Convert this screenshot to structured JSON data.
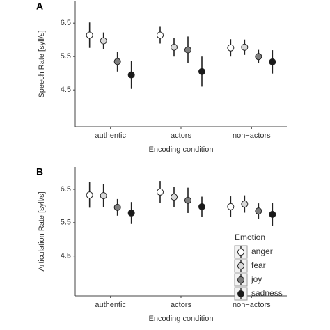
{
  "chart_data": [
    {
      "type": "errorbar",
      "panel_label": "A",
      "ylabel": "Speech Rate [syll/s]",
      "xlabel": "Encoding condition",
      "categories": [
        "authentic",
        "actors",
        "non−actors"
      ],
      "ylim": [
        3.4,
        7.15
      ],
      "yticks": [
        4.5,
        5.5,
        6.5
      ],
      "series": [
        {
          "name": "anger",
          "color": "#ffffff",
          "values": [
            6.14,
            6.14,
            5.76
          ],
          "errors": [
            0.38,
            0.25,
            0.26
          ]
        },
        {
          "name": "fear",
          "color": "#d9d9d9",
          "values": [
            5.97,
            5.78,
            5.78
          ],
          "errors": [
            0.25,
            0.28,
            0.23
          ]
        },
        {
          "name": "joy",
          "color": "#7f7f7f",
          "values": [
            5.35,
            5.7,
            5.5
          ],
          "errors": [
            0.3,
            0.4,
            0.2
          ]
        },
        {
          "name": "sadness",
          "color": "#1a1a1a",
          "values": [
            4.95,
            5.05,
            5.34
          ],
          "errors": [
            0.42,
            0.45,
            0.35
          ]
        }
      ]
    },
    {
      "type": "errorbar",
      "panel_label": "B",
      "ylabel": "Articulation Rate [syll/s]",
      "xlabel": "Encoding condition",
      "categories": [
        "authentic",
        "actors",
        "non−actors"
      ],
      "ylim": [
        3.3,
        7.17
      ],
      "yticks": [
        4.5,
        5.5,
        6.5
      ],
      "legend": "lower right",
      "legend_title": "Emotion",
      "series": [
        {
          "name": "anger",
          "color": "#ffffff",
          "values": [
            6.33,
            6.42,
            5.98
          ],
          "errors": [
            0.38,
            0.33,
            0.31
          ]
        },
        {
          "name": "fear",
          "color": "#d9d9d9",
          "values": [
            6.31,
            6.27,
            6.06
          ],
          "errors": [
            0.35,
            0.31,
            0.26
          ]
        },
        {
          "name": "joy",
          "color": "#7f7f7f",
          "values": [
            5.96,
            6.17,
            5.85
          ],
          "errors": [
            0.25,
            0.38,
            0.23
          ]
        },
        {
          "name": "sadness",
          "color": "#1a1a1a",
          "values": [
            5.79,
            5.98,
            5.75
          ],
          "errors": [
            0.33,
            0.3,
            0.35
          ]
        }
      ]
    }
  ]
}
